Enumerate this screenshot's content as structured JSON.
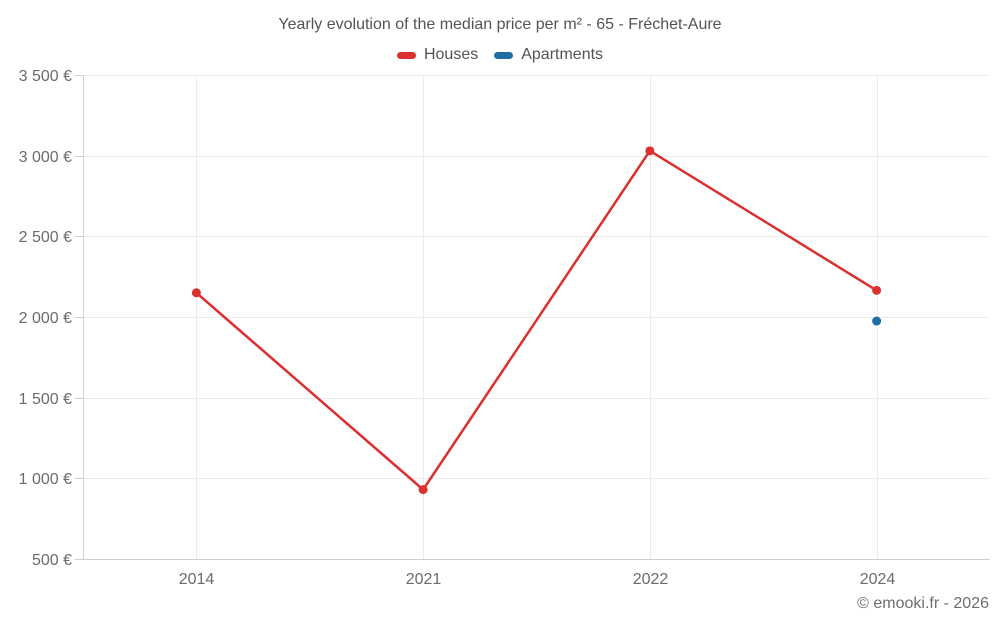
{
  "chart_data": {
    "type": "line",
    "title": "Yearly evolution of the median price per m² - 65 - Fréchet-Aure",
    "categories": [
      "2014",
      "2021",
      "2022",
      "2024"
    ],
    "series": [
      {
        "name": "Houses",
        "color": "#dc2f2f",
        "values": [
          2150,
          930,
          3030,
          2165
        ]
      },
      {
        "name": "Apartments",
        "color": "#1c6ea4",
        "values": [
          null,
          null,
          null,
          1975
        ]
      }
    ],
    "ylim": [
      500,
      3500
    ],
    "ytick_step": 500,
    "y_suffix": "€",
    "grid": true,
    "legend_position": "top",
    "marker_radius": 4.5,
    "line_width": 2.5
  },
  "footer": {
    "copyright": "© emooki.fr - 2026"
  }
}
